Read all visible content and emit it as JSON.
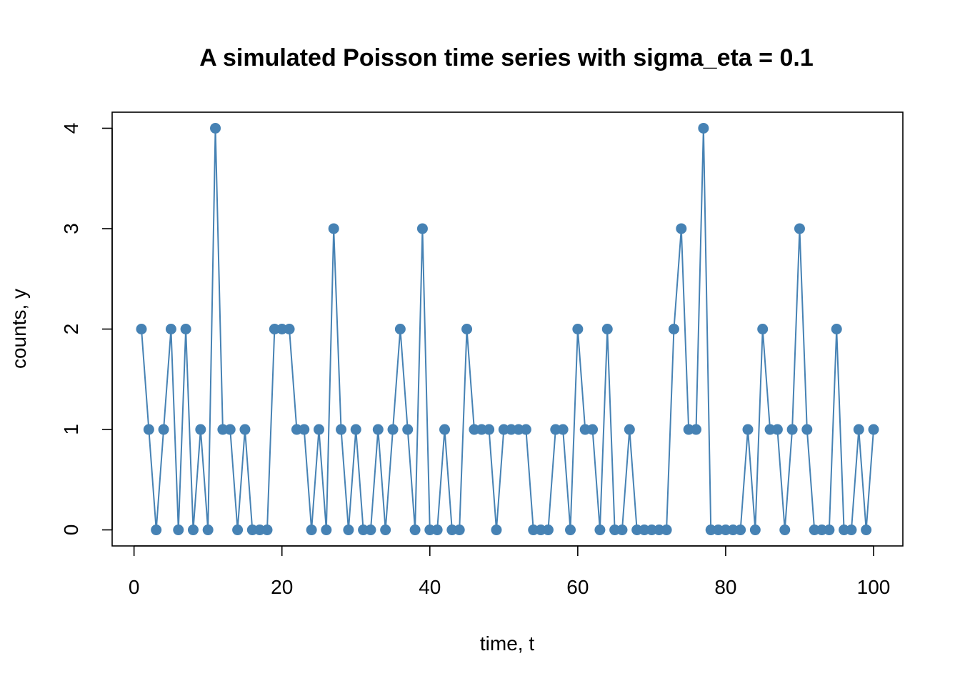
{
  "chart_data": {
    "type": "line",
    "title": "A simulated Poisson time series with sigma_eta = 0.1",
    "xlabel": "time, t",
    "ylabel": "counts, y",
    "xlim": [
      1,
      100
    ],
    "ylim": [
      0,
      4
    ],
    "grid": false,
    "color": "#4682B4",
    "markers": true,
    "xticks": [
      0,
      20,
      40,
      60,
      80,
      100
    ],
    "yticks": [
      0,
      1,
      2,
      3,
      4
    ],
    "xtick_labels": [
      "0",
      "20",
      "40",
      "60",
      "80",
      "100"
    ],
    "ytick_labels": [
      "0",
      "1",
      "2",
      "3",
      "4"
    ],
    "series": [
      {
        "x": [
          1,
          2,
          3,
          4,
          5,
          6,
          7,
          8,
          9,
          10,
          11,
          12,
          13,
          14,
          15,
          16,
          17,
          18,
          19,
          20,
          21,
          22,
          23,
          24,
          25,
          26,
          27,
          28,
          29,
          30,
          31,
          32,
          33,
          34,
          35,
          36,
          37,
          38,
          39,
          40,
          41,
          42,
          43,
          44,
          45,
          46,
          47,
          48,
          49,
          50,
          51,
          52,
          53,
          54,
          55,
          56,
          57,
          58,
          59,
          60,
          61,
          62,
          63,
          64,
          65,
          66,
          67,
          68,
          69,
          70,
          71,
          72,
          73,
          74,
          75,
          76,
          77,
          78,
          79,
          80,
          81,
          82,
          83,
          84,
          85,
          86,
          87,
          88,
          89,
          90,
          91,
          92,
          93,
          94,
          95,
          96,
          97,
          98,
          99,
          100
        ],
        "values": [
          2,
          1,
          0,
          1,
          2,
          0,
          2,
          0,
          1,
          0,
          4,
          1,
          1,
          0,
          1,
          0,
          0,
          0,
          2,
          2,
          2,
          1,
          1,
          0,
          1,
          0,
          3,
          1,
          0,
          1,
          0,
          0,
          1,
          0,
          1,
          2,
          1,
          0,
          3,
          0,
          0,
          1,
          0,
          0,
          2,
          1,
          1,
          1,
          0,
          1,
          1,
          1,
          1,
          0,
          0,
          0,
          1,
          1,
          0,
          2,
          1,
          1,
          0,
          2,
          0,
          0,
          1,
          0,
          0,
          0,
          0,
          0,
          2,
          3,
          1,
          1,
          4,
          0,
          0,
          0,
          0,
          0,
          1,
          0,
          2,
          1,
          1,
          0,
          1,
          3,
          1,
          0,
          0,
          0,
          2,
          0,
          0,
          1,
          0,
          1
        ]
      }
    ]
  }
}
